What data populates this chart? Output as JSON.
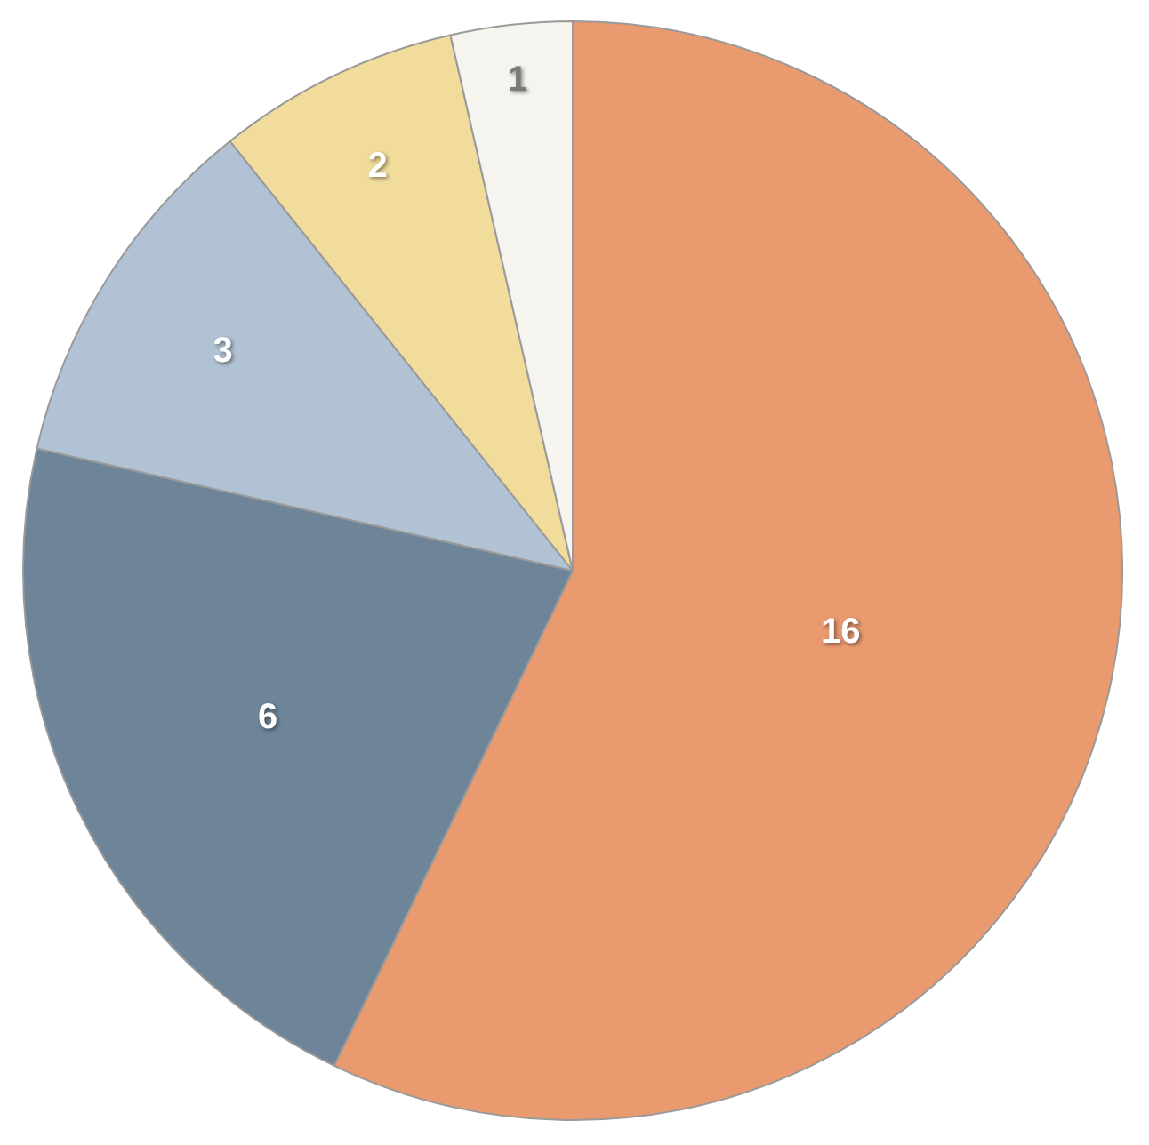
{
  "chart_data": {
    "type": "pie",
    "categories": [
      null,
      null,
      null,
      null,
      null
    ],
    "values": [
      16,
      6,
      3,
      2,
      1
    ],
    "colors": [
      "#e99a6f",
      "#6e8599",
      "#b1c2d4",
      "#f2dc9b",
      "#f6f4ef"
    ],
    "data_labels": true
  }
}
